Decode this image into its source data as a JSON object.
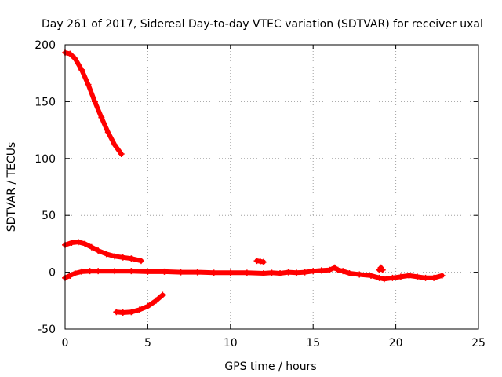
{
  "chart_data": {
    "type": "scatter",
    "title": "Day 261 of 2017, Sidereal Day-to-day VTEC variation (SDTVAR) for receiver uxal",
    "xlabel": "GPS time / hours",
    "ylabel": "SDTVAR / TECUs",
    "xlim": [
      0,
      25
    ],
    "ylim": [
      -50,
      200
    ],
    "xticks": [
      0,
      5,
      10,
      15,
      20,
      25
    ],
    "yticks": [
      -50,
      0,
      50,
      100,
      150,
      200
    ],
    "grid": true,
    "marker": "+",
    "color": "#ff0000",
    "series": [
      {
        "name": "arc-high",
        "points": [
          [
            0,
            193
          ],
          [
            0.3,
            192
          ],
          [
            0.6,
            188
          ],
          [
            1.0,
            178
          ],
          [
            1.4,
            165
          ],
          [
            1.8,
            150
          ],
          [
            2.2,
            136
          ],
          [
            2.6,
            123
          ],
          [
            3.0,
            112
          ],
          [
            3.4,
            104
          ]
        ]
      },
      {
        "name": "arc-mid",
        "points": [
          [
            0,
            24
          ],
          [
            0.4,
            26
          ],
          [
            0.8,
            26.5
          ],
          [
            1.2,
            25
          ],
          [
            1.6,
            22
          ],
          [
            2.0,
            19
          ],
          [
            2.5,
            16
          ],
          [
            3.0,
            14
          ],
          [
            3.5,
            13
          ],
          [
            4.0,
            12
          ],
          [
            4.6,
            10
          ]
        ]
      },
      {
        "name": "arc-low",
        "points": [
          [
            3.1,
            -35
          ],
          [
            3.5,
            -35.5
          ],
          [
            4.0,
            -35
          ],
          [
            4.5,
            -33
          ],
          [
            5.0,
            -30
          ],
          [
            5.5,
            -25
          ],
          [
            5.9,
            -20
          ]
        ]
      },
      {
        "name": "arc-near-zero",
        "points": [
          [
            0,
            -5
          ],
          [
            0.3,
            -3
          ],
          [
            0.6,
            -1
          ],
          [
            1.0,
            0.5
          ],
          [
            1.5,
            1
          ],
          [
            2.0,
            1
          ],
          [
            3,
            1
          ],
          [
            4,
            1
          ],
          [
            5,
            0.5
          ],
          [
            6,
            0.5
          ],
          [
            7,
            0
          ],
          [
            8,
            0
          ],
          [
            9,
            -0.5
          ],
          [
            10,
            -0.5
          ],
          [
            11,
            -0.5
          ],
          [
            12,
            -1
          ],
          [
            12.5,
            -0.5
          ],
          [
            13,
            -1
          ],
          [
            13.5,
            0
          ],
          [
            14,
            -0.5
          ],
          [
            14.5,
            0
          ],
          [
            15,
            1
          ],
          [
            15.5,
            1.5
          ],
          [
            16,
            2
          ],
          [
            16.3,
            4
          ],
          [
            16.5,
            2
          ],
          [
            16.8,
            1
          ],
          [
            17.2,
            -1
          ],
          [
            17.8,
            -2
          ],
          [
            18.5,
            -3
          ],
          [
            19.0,
            -5
          ],
          [
            19.3,
            -6
          ],
          [
            19.8,
            -5
          ],
          [
            20.3,
            -4
          ],
          [
            20.8,
            -3
          ],
          [
            21.3,
            -4
          ],
          [
            21.8,
            -5
          ],
          [
            22.3,
            -5
          ],
          [
            22.8,
            -3
          ]
        ]
      },
      {
        "name": "short-segment",
        "points": [
          [
            11.6,
            10
          ],
          [
            11.8,
            9.5
          ],
          [
            12.0,
            9
          ]
        ]
      },
      {
        "name": "spike",
        "points": [
          [
            19.0,
            2
          ],
          [
            19.1,
            4
          ],
          [
            19.2,
            2
          ]
        ]
      }
    ]
  }
}
